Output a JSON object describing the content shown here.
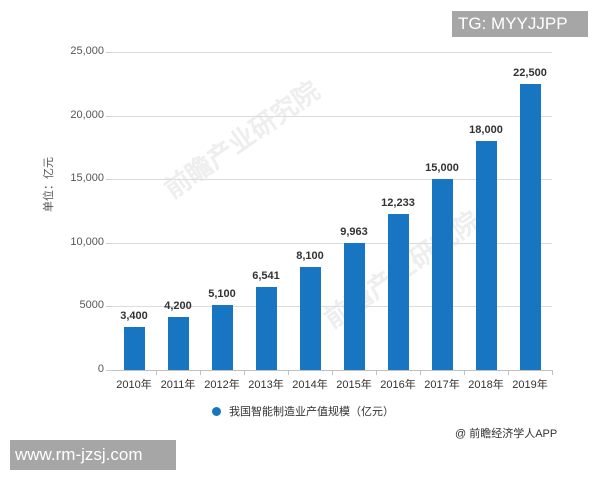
{
  "tags": {
    "top": "TG: MYYJJPP",
    "bottom": "www.rm-jzsj.com"
  },
  "watermark": "前瞻产业研究院",
  "chart_data": {
    "type": "bar",
    "title": "",
    "xlabel": "",
    "ylabel": "单位：亿元",
    "ylim": [
      0,
      25000
    ],
    "yticks": [
      "0",
      "5000",
      "10,000",
      "15,000",
      "20,000",
      "25,000"
    ],
    "grid": true,
    "legend_position": "bottom",
    "categories": [
      "2010年",
      "2011年",
      "2012年",
      "2013年",
      "2014年",
      "2015年",
      "2016年",
      "2017年",
      "2018年",
      "2019年"
    ],
    "series": [
      {
        "name": "我国智能制造业产值规模（亿元）",
        "color": "#1775c1",
        "values": [
          3400,
          4200,
          5100,
          6541,
          8100,
          9963,
          12233,
          15000,
          18000,
          22500
        ],
        "labels": [
          "3,400",
          "4,200",
          "5,100",
          "6,541",
          "8,100",
          "9,963",
          "12,233",
          "15,000",
          "18,000",
          "22,500"
        ]
      }
    ],
    "source": "@ 前瞻经济学人APP"
  }
}
